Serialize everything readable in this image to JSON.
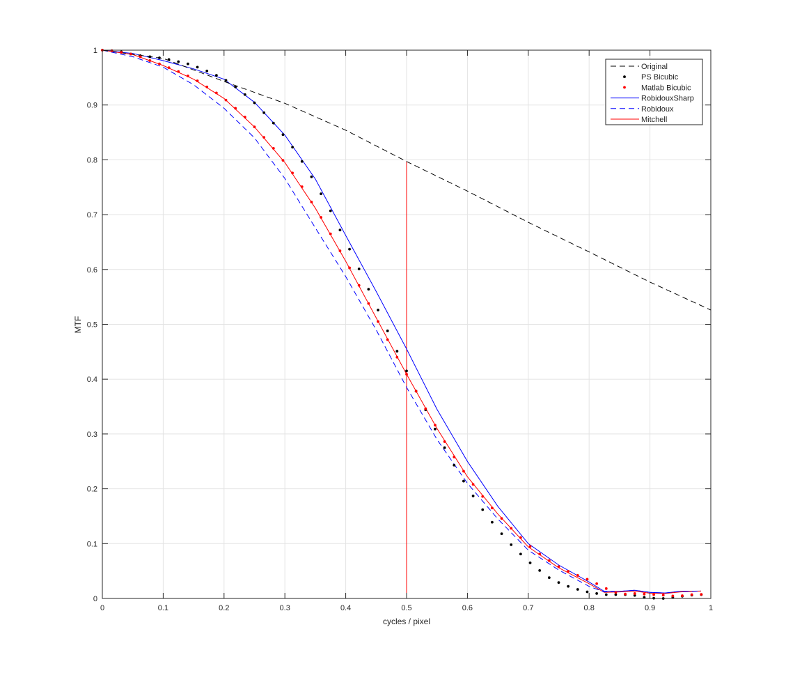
{
  "chart_data": {
    "type": "line",
    "title": "",
    "xlabel": "cycles / pixel",
    "ylabel": "MTF",
    "xlim": [
      0,
      1
    ],
    "ylim": [
      0,
      1
    ],
    "xticks": [
      "0",
      "0.1",
      "0.2",
      "0.3",
      "0.4",
      "0.5",
      "0.6",
      "0.7",
      "0.8",
      "0.9",
      "1"
    ],
    "yticks": [
      "0",
      "0.1",
      "0.2",
      "0.3",
      "0.4",
      "0.5",
      "0.6",
      "0.7",
      "0.8",
      "0.9",
      "1"
    ],
    "grid": true,
    "legend_position": "top-right",
    "series": [
      {
        "name": "Original",
        "style": "dashed",
        "color": "#000000",
        "x": [
          0,
          0.1,
          0.2,
          0.3,
          0.4,
          0.5,
          0.6,
          0.7,
          0.8,
          0.9,
          1.0
        ],
        "y": [
          1,
          0.985,
          0.943,
          0.903,
          0.854,
          0.797,
          0.743,
          0.686,
          0.632,
          0.577,
          0.526
        ]
      },
      {
        "name": "PS Bicubic",
        "style": "dots",
        "color": "#000000",
        "x_step": 0.015625,
        "y": [
          1,
          0.999,
          0.997,
          0.993,
          0.99,
          0.988,
          0.986,
          0.983,
          0.979,
          0.975,
          0.969,
          0.962,
          0.954,
          0.945,
          0.933,
          0.919,
          0.904,
          0.886,
          0.867,
          0.846,
          0.823,
          0.797,
          0.769,
          0.738,
          0.707,
          0.672,
          0.637,
          0.601,
          0.564,
          0.526,
          0.488,
          0.451,
          0.415,
          0.378,
          0.344,
          0.309,
          0.275,
          0.243,
          0.214,
          0.187,
          0.162,
          0.139,
          0.118,
          0.098,
          0.081,
          0.065,
          0.051,
          0.038,
          0.029,
          0.022,
          0.0165,
          0.012,
          0.009,
          0.007,
          0.007,
          0.007,
          0.0055,
          0.002,
          0.0004,
          0,
          0.002,
          0.004,
          0.006,
          0.007
        ]
      },
      {
        "name": "Matlab Bicubic",
        "style": "dots",
        "color": "#ff0000",
        "x_step": 0.015625,
        "y": [
          1,
          0.999,
          0.996,
          0.993,
          0.988,
          0.981,
          0.975,
          0.968,
          0.961,
          0.953,
          0.944,
          0.933,
          0.922,
          0.909,
          0.894,
          0.878,
          0.86,
          0.841,
          0.821,
          0.799,
          0.776,
          0.751,
          0.723,
          0.695,
          0.665,
          0.634,
          0.603,
          0.571,
          0.538,
          0.505,
          0.472,
          0.44,
          0.409,
          0.378,
          0.346,
          0.316,
          0.286,
          0.258,
          0.232,
          0.208,
          0.186,
          0.165,
          0.146,
          0.128,
          0.111,
          0.095,
          0.081,
          0.069,
          0.058,
          0.0495,
          0.042,
          0.035,
          0.027,
          0.018,
          0.011,
          0.008,
          0.009,
          0.008,
          0.007,
          0.006,
          0.0045,
          0.005,
          0.007,
          0.0075
        ]
      },
      {
        "name": "RobidouxSharp",
        "style": "solid",
        "color": "#0000ff",
        "x": [
          0,
          0.05,
          0.1,
          0.15,
          0.2,
          0.25,
          0.3,
          0.35,
          0.4,
          0.45,
          0.5,
          0.55,
          0.6,
          0.65,
          0.7,
          0.75,
          0.8,
          0.825,
          0.85,
          0.875,
          0.9,
          0.925,
          0.95,
          0.984
        ],
        "y": [
          1,
          0.994,
          0.981,
          0.966,
          0.947,
          0.905,
          0.845,
          0.765,
          0.662,
          0.56,
          0.455,
          0.345,
          0.25,
          0.168,
          0.1,
          0.061,
          0.03,
          0.013,
          0.013,
          0.015,
          0.011,
          0.01,
          0.013,
          0.0135
        ]
      },
      {
        "name": "Robidoux",
        "style": "dashed",
        "color": "#0000ff",
        "x": [
          0,
          0.05,
          0.1,
          0.15,
          0.2,
          0.25,
          0.3,
          0.35,
          0.4,
          0.45,
          0.5,
          0.55,
          0.6,
          0.65,
          0.7,
          0.75,
          0.8,
          0.825,
          0.85,
          0.875,
          0.9,
          0.925,
          0.95,
          0.984
        ],
        "y": [
          1,
          0.988,
          0.969,
          0.937,
          0.894,
          0.84,
          0.766,
          0.676,
          0.587,
          0.49,
          0.385,
          0.29,
          0.21,
          0.145,
          0.088,
          0.052,
          0.022,
          0.012,
          0.013,
          0.015,
          0.011,
          0.01,
          0.013,
          0.0135
        ]
      },
      {
        "name": "Mitchell",
        "style": "solid",
        "color": "#ff0000",
        "x": [
          0,
          0.05,
          0.1,
          0.15,
          0.2,
          0.25,
          0.3,
          0.35,
          0.4,
          0.45,
          0.5,
          0.55,
          0.6,
          0.65,
          0.7,
          0.75,
          0.8,
          0.825,
          0.85,
          0.875,
          0.9,
          0.925,
          0.95,
          0.984
        ],
        "y": [
          1,
          0.992,
          0.972,
          0.947,
          0.912,
          0.86,
          0.795,
          0.712,
          0.615,
          0.512,
          0.409,
          0.31,
          0.222,
          0.154,
          0.094,
          0.056,
          0.027,
          0.011,
          0.012,
          0.0135,
          0.0095,
          0.009,
          0.012,
          0.0135
        ]
      }
    ],
    "annotations": [
      {
        "type": "vertical-line",
        "color": "#ff0000",
        "x": [
          0.5,
          0.5
        ],
        "y": [
          0,
          0.797
        ]
      }
    ]
  }
}
